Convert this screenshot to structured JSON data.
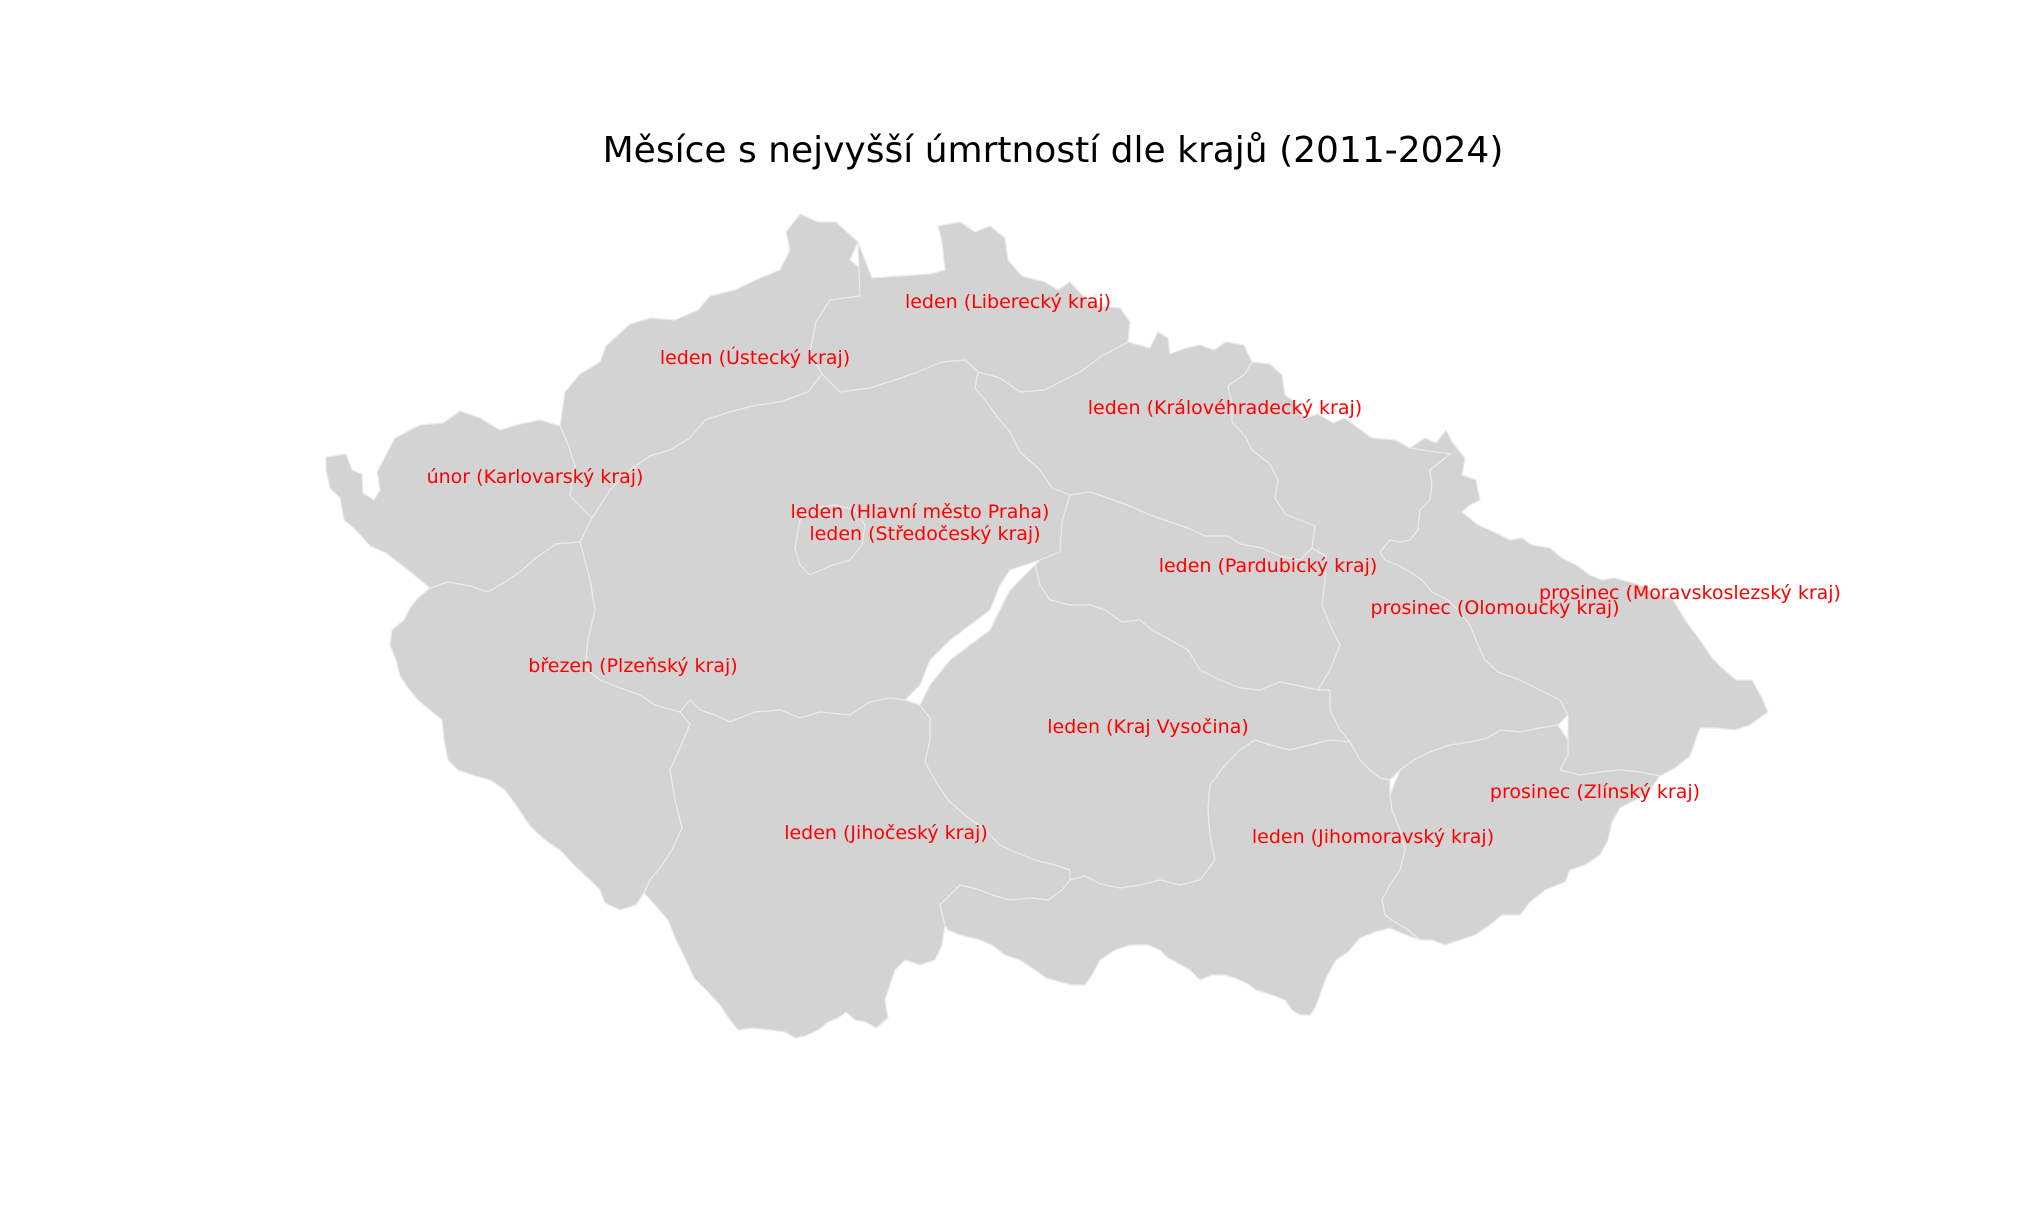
{
  "title": "Měsíce s nejvyšší úmrtností dle krajů (2011-2024)",
  "colors": {
    "region_fill": "#d3d3d3",
    "region_border": "#ebebeb",
    "label_text": "#ff0000",
    "background": "#ffffff"
  },
  "regions": [
    {
      "name": "Liberecký kraj",
      "month": "leden",
      "label": "leden (Liberecký kraj)"
    },
    {
      "name": "Ústecký kraj",
      "month": "leden",
      "label": "leden (Ústecký kraj)"
    },
    {
      "name": "Královéhradecký kraj",
      "month": "leden",
      "label": "leden (Královéhradecký kraj)"
    },
    {
      "name": "Karlovarský kraj",
      "month": "únor",
      "label": "únor (Karlovarský kraj)"
    },
    {
      "name": "Hlavní město Praha",
      "month": "leden",
      "label": "leden (Hlavní město Praha)"
    },
    {
      "name": "Středočeský kraj",
      "month": "leden",
      "label": "leden (Středočeský kraj)"
    },
    {
      "name": "Pardubický kraj",
      "month": "leden",
      "label": "leden (Pardubický kraj)"
    },
    {
      "name": "Moravskoslezský kraj",
      "month": "prosinec",
      "label": "prosinec (Moravskoslezský kraj)"
    },
    {
      "name": "Olomoucký kraj",
      "month": "prosinec",
      "label": "prosinec (Olomoucký kraj)"
    },
    {
      "name": "Plzeňský kraj",
      "month": "březen",
      "label": "březen (Plzeňský kraj)"
    },
    {
      "name": "Kraj Vysočina",
      "month": "leden",
      "label": "leden (Kraj Vysočina)"
    },
    {
      "name": "Zlínský kraj",
      "month": "prosinec",
      "label": "prosinec (Zlínský kraj)"
    },
    {
      "name": "Jihočeský kraj",
      "month": "leden",
      "label": "leden (Jihočeský kraj)"
    },
    {
      "name": "Jihomoravský kraj",
      "month": "leden",
      "label": "leden (Jihomoravský kraj)"
    }
  ]
}
